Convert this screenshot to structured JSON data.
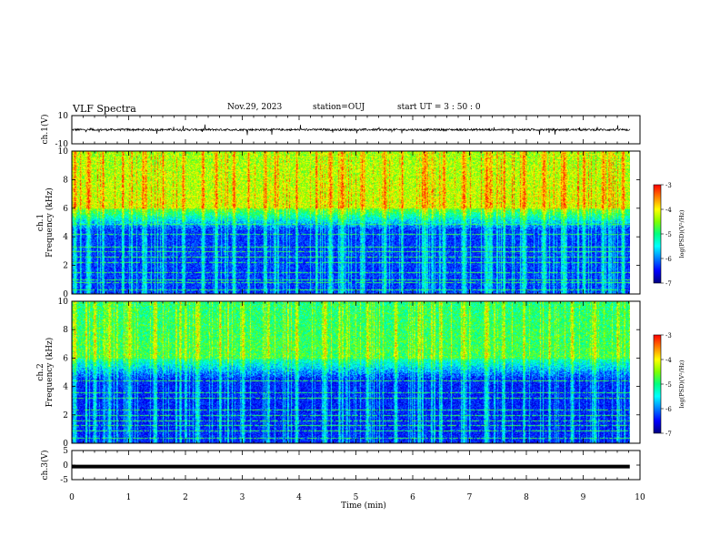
{
  "header": {
    "title": "VLF Spectra",
    "date": "Nov.29, 2023",
    "station": "station=OUJ",
    "start": "start UT = 3 : 50 : 0"
  },
  "colors": {
    "colormap": [
      "#000080",
      "#0000ff",
      "#0080ff",
      "#00ffff",
      "#00ff80",
      "#80ff00",
      "#ffff00",
      "#ff8000",
      "#ff0000"
    ],
    "trace": "#000000",
    "axes": "#000000"
  },
  "chart_data": [
    {
      "type": "line",
      "id": "ch1",
      "ylabel": "ch.1(V)",
      "ylim": [
        -10,
        10
      ],
      "yticks": [
        "10",
        "-10"
      ],
      "series": [
        {
          "values_description_note": "",
          "mean": 0,
          "amplitude_typical": 1.5,
          "spike_amplitude": 4
        }
      ]
    },
    {
      "type": "heatmap",
      "id": "ch1-spec",
      "ylabel_top": "ch.1",
      "ylabel": "Frequency (kHz)",
      "ylim": [
        0,
        10
      ],
      "yticks": [
        "0",
        "2",
        "4",
        "6",
        "8",
        "10"
      ],
      "cbar_label": "log(PSD)(V²/Hz)",
      "cbar_range": [
        -7,
        -3
      ],
      "cbar_ticks": [
        "-3",
        "-4",
        "-5",
        "-6",
        "-7"
      ],
      "features": {
        "high_band_kHz": [
          6,
          10
        ],
        "high_band_log_psd": -4.2,
        "mid_band_kHz": [
          4.5,
          6
        ],
        "low_band_log_psd": -6.3,
        "tone_lines_kHz": [
          0.3,
          0.8,
          1.0,
          1.5,
          2.2,
          2.6,
          3.0,
          3.3,
          4.2,
          4.9
        ],
        "bursts_min": [
          0.05,
          0.28,
          0.55,
          0.9,
          1.25,
          1.6,
          1.95,
          2.3,
          2.55,
          2.85,
          3.1,
          3.4,
          3.95,
          4.3,
          4.55,
          4.75,
          5.1,
          5.5,
          5.8,
          6.2,
          6.55,
          6.9,
          7.3,
          7.6,
          7.95,
          8.3,
          8.65,
          9.0,
          9.35,
          9.7
        ]
      }
    },
    {
      "type": "heatmap",
      "id": "ch2-spec",
      "ylabel_top": "ch.2",
      "ylabel": "Frequency (kHz)",
      "ylim": [
        0,
        10
      ],
      "yticks": [
        "0",
        "2",
        "4",
        "6",
        "8",
        "10"
      ],
      "cbar_label": "log(PSD)(V²/Hz)",
      "cbar_range": [
        -7,
        -3
      ],
      "cbar_ticks": [
        "-3",
        "-4",
        "-5",
        "-6",
        "-7"
      ],
      "features": {
        "high_band_kHz": [
          6,
          10
        ],
        "high_band_log_psd": -4.8,
        "mid_band_kHz": [
          4.5,
          6.2
        ],
        "low_band_log_psd": -6.4,
        "tone_lines_kHz": [
          0.4,
          0.9,
          1.3,
          1.6,
          2.0,
          2.4,
          3.2,
          3.6,
          4.4
        ],
        "bursts_min": [
          0.05,
          0.4,
          0.65,
          1.0,
          1.45,
          1.9,
          2.2,
          2.6,
          3.0,
          3.45,
          3.95,
          4.45,
          4.7,
          5.2,
          5.7,
          6.1,
          6.5,
          6.9,
          7.3,
          7.6,
          7.95,
          8.4,
          8.8,
          9.2,
          9.6
        ]
      }
    },
    {
      "type": "line",
      "id": "ch3",
      "ylabel": "ch.3(V)",
      "ylim": [
        -5,
        5
      ],
      "yticks": [
        "5",
        "0",
        "-5"
      ],
      "series": [
        {
          "constant": -0.5
        }
      ]
    }
  ],
  "xaxis": {
    "label": "Time (min)",
    "xlim": [
      0,
      10
    ],
    "ticks": [
      "0",
      "1",
      "2",
      "3",
      "4",
      "5",
      "6",
      "7",
      "8",
      "9",
      "10"
    ],
    "data_end_min": 9.82
  }
}
